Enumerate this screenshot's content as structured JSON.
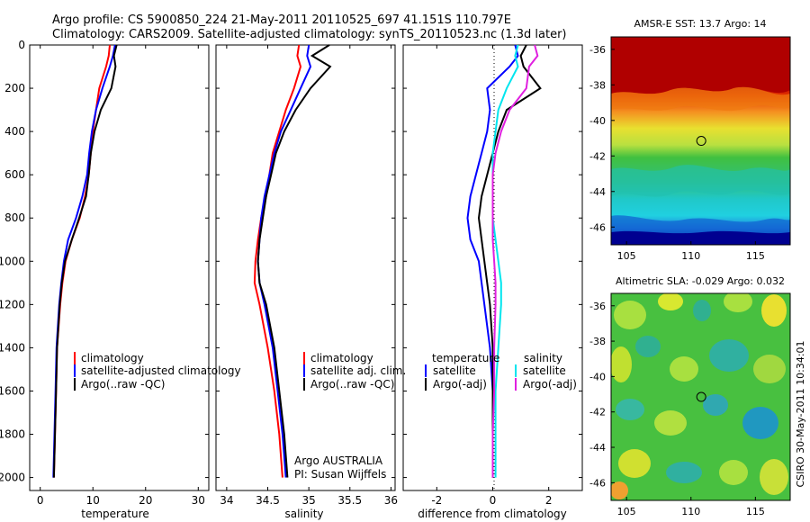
{
  "header": {
    "line1": "Argo profile: CS 5900850_224 21-May-2011 20110525_697 41.151S 110.797E",
    "line2": "Climatology: CARS2009. Satellite-adjusted climatology: synTS_20110523.nc (1.3d later)"
  },
  "colors": {
    "climatology": "#ff0000",
    "satellite": "#0000ff",
    "argo": "#000000",
    "sal_satellite": "#00e5ee",
    "sal_argo": "#e020e0"
  },
  "panels": {
    "temperature": {
      "xlabel": "temperature",
      "xticks": [
        "0",
        "10",
        "20",
        "30"
      ],
      "legend": [
        "climatology",
        "satellite-adjusted climatology",
        "Argo(..raw -QC)"
      ]
    },
    "salinity": {
      "xlabel": "salinity",
      "xticks": [
        "34",
        "34.5",
        "35",
        "35.5",
        "36"
      ],
      "legend": [
        "climatology",
        "satellite adj. clim.",
        "Argo(..raw -QC)"
      ],
      "credit1": "Argo AUSTRALIA",
      "credit2": "PI: Susan Wijffels"
    },
    "difference": {
      "xlabel": "difference from climatology",
      "xticks": [
        "-2",
        "0",
        "2"
      ],
      "temp_head": "temperature",
      "sal_head": "salinity",
      "legend_t": [
        "satellite",
        "Argo(-adj)"
      ],
      "legend_s": [
        "satellite",
        "Argo(-adj)"
      ]
    },
    "depth_ticks": [
      "0",
      "200",
      "400",
      "600",
      "800",
      "1000",
      "1200",
      "1400",
      "1600",
      "1800",
      "2000"
    ]
  },
  "maps": {
    "sst_title": "AMSR-E SST: 13.7 Argo: 14",
    "sla_title": "Altimetric SLA: -0.029 Argo: 0.032",
    "lat_ticks": [
      "-36",
      "-38",
      "-40",
      "-42",
      "-44",
      "-46"
    ],
    "lon_ticks": [
      "105",
      "110",
      "115"
    ],
    "side_label": "CSIRO 30-May-2011 10:34:01"
  },
  "chart_data": [
    {
      "type": "line",
      "title": "",
      "xlabel": "temperature",
      "ylabel": "",
      "xlim": [
        -2,
        32
      ],
      "ylim": [
        2060,
        0
      ],
      "series": [
        {
          "name": "climatology",
          "x": [
            13.2,
            13.0,
            12.5,
            11.2,
            10.6,
            10.0,
            9.6,
            9.2,
            8.5,
            7.5,
            6.0,
            4.8,
            4.2,
            3.8,
            3.2,
            3.0,
            2.8,
            2.6
          ],
          "y": [
            0,
            50,
            100,
            200,
            300,
            400,
            500,
            600,
            700,
            800,
            900,
            1000,
            1100,
            1200,
            1400,
            1600,
            1800,
            2000
          ]
        },
        {
          "name": "satellite-adjusted climatology",
          "x": [
            14.2,
            13.8,
            13.2,
            11.8,
            10.6,
            9.8,
            9.3,
            8.9,
            8.0,
            6.8,
            5.3,
            4.5,
            4.0,
            3.6,
            3.1,
            2.9,
            2.7,
            2.5
          ],
          "y": [
            0,
            50,
            100,
            200,
            300,
            400,
            500,
            600,
            700,
            800,
            900,
            1000,
            1100,
            1200,
            1400,
            1600,
            1800,
            2000
          ]
        },
        {
          "name": "Argo(..raw -QC)",
          "x": [
            14.5,
            14.0,
            14.3,
            13.5,
            11.5,
            10.3,
            9.6,
            9.2,
            8.7,
            7.4,
            6.0,
            4.7,
            4.1,
            3.7,
            3.2,
            3.0,
            2.8,
            2.6
          ],
          "y": [
            0,
            50,
            100,
            200,
            300,
            400,
            500,
            600,
            700,
            800,
            900,
            1000,
            1100,
            1200,
            1400,
            1600,
            1800,
            2000
          ]
        }
      ]
    },
    {
      "type": "line",
      "title": "",
      "xlabel": "salinity",
      "ylabel": "",
      "xlim": [
        33.87,
        36.05
      ],
      "ylim": [
        2060,
        0
      ],
      "series": [
        {
          "name": "climatology",
          "x": [
            34.88,
            34.86,
            34.9,
            34.82,
            34.72,
            34.64,
            34.56,
            34.52,
            34.48,
            34.42,
            34.38,
            34.35,
            34.34,
            34.4,
            34.5,
            34.58,
            34.64,
            34.68
          ],
          "y": [
            0,
            50,
            100,
            200,
            300,
            400,
            500,
            600,
            700,
            800,
            900,
            1000,
            1100,
            1200,
            1400,
            1600,
            1800,
            2000
          ]
        },
        {
          "name": "satellite adj. clim.",
          "x": [
            35.0,
            34.98,
            35.02,
            34.9,
            34.78,
            34.66,
            34.58,
            34.52,
            34.46,
            34.42,
            34.4,
            34.38,
            34.4,
            34.46,
            34.56,
            34.62,
            34.68,
            34.72
          ],
          "y": [
            0,
            50,
            100,
            200,
            300,
            400,
            500,
            600,
            700,
            800,
            900,
            1000,
            1100,
            1200,
            1400,
            1600,
            1800,
            2000
          ]
        },
        {
          "name": "Argo(..raw -QC)",
          "x": [
            35.25,
            35.04,
            35.26,
            35.02,
            34.84,
            34.7,
            34.6,
            34.54,
            34.48,
            34.44,
            34.4,
            34.38,
            34.4,
            34.48,
            34.58,
            34.64,
            34.7,
            34.74
          ],
          "y": [
            0,
            50,
            100,
            200,
            300,
            400,
            500,
            600,
            700,
            800,
            900,
            1000,
            1100,
            1200,
            1400,
            1600,
            1800,
            2000
          ]
        }
      ]
    },
    {
      "type": "line",
      "title": "",
      "xlabel": "difference from climatology",
      "ylabel": "",
      "xlim": [
        -3.2,
        3.2
      ],
      "ylim": [
        2060,
        0
      ],
      "series": [
        {
          "name": "satellite",
          "x": [
            0.8,
            0.9,
            0.6,
            -0.2,
            -0.1,
            -0.2,
            -0.4,
            -0.6,
            -0.8,
            -0.9,
            -0.8,
            -0.5,
            -0.4,
            -0.3,
            -0.1,
            0,
            0,
            0
          ],
          "y": [
            0,
            50,
            100,
            200,
            300,
            400,
            500,
            600,
            700,
            800,
            900,
            1000,
            1100,
            1200,
            1400,
            1600,
            1800,
            2000
          ]
        },
        {
          "name": "Argo(-adj)",
          "x": [
            1.2,
            1.0,
            1.1,
            1.7,
            0.5,
            0.2,
            0,
            -0.2,
            -0.4,
            -0.5,
            -0.4,
            -0.3,
            -0.2,
            -0.1,
            0,
            0,
            0,
            0
          ],
          "y": [
            0,
            50,
            100,
            200,
            300,
            400,
            500,
            600,
            700,
            800,
            900,
            1000,
            1100,
            1200,
            1400,
            1600,
            1800,
            2000
          ]
        },
        {
          "name": "satellite",
          "x": [
            0.9,
            0.8,
            0.9,
            0.5,
            0.2,
            0.1,
            0.0,
            0.0,
            0.0,
            0.0,
            0.1,
            0.2,
            0.3,
            0.3,
            0.2,
            0.1,
            0.1,
            0.1
          ],
          "y": [
            0,
            50,
            100,
            200,
            300,
            400,
            500,
            600,
            700,
            800,
            900,
            1000,
            1100,
            1200,
            1400,
            1600,
            1800,
            2000
          ]
        },
        {
          "name": "Argo(-adj)",
          "x": [
            1.5,
            1.6,
            1.3,
            1.2,
            0.6,
            0.3,
            0.1,
            0.0,
            0.0,
            0.0,
            0.0,
            0.05,
            0.1,
            0.1,
            0.05,
            0.05,
            0.0,
            0.0
          ],
          "y": [
            0,
            50,
            100,
            200,
            300,
            400,
            500,
            600,
            700,
            800,
            900,
            1000,
            1100,
            1200,
            1400,
            1600,
            1800,
            2000
          ]
        }
      ]
    },
    {
      "type": "heatmap",
      "title": "AMSR-E SST: 13.7 Argo: 14",
      "xlabel": "",
      "ylabel": "",
      "xlim": [
        103.8,
        117.7
      ],
      "ylim": [
        -47,
        -35.3
      ],
      "argo_position": {
        "lon": 110.797,
        "lat": -41.151
      }
    },
    {
      "type": "heatmap",
      "title": "Altimetric SLA: -0.029 Argo: 0.032",
      "xlabel": "",
      "ylabel": "",
      "xlim": [
        103.8,
        117.7
      ],
      "ylim": [
        -47,
        -35.3
      ],
      "argo_position": {
        "lon": 110.797,
        "lat": -41.151
      }
    }
  ]
}
